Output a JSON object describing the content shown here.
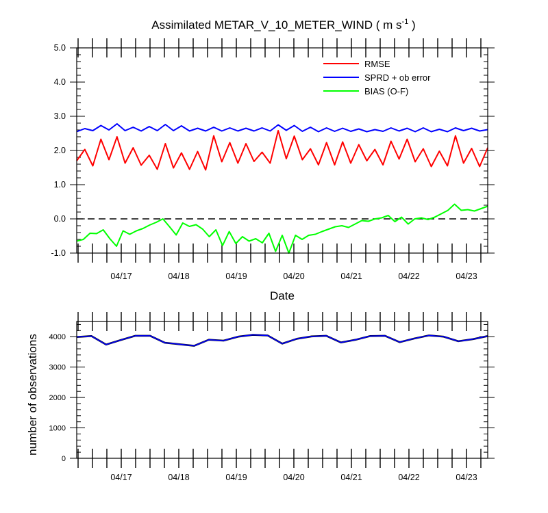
{
  "chart_data": [
    {
      "type": "line",
      "title": "Assimilated METAR_V_10_METER_WIND ( m s",
      "title_superscript": "-1",
      "title_suffix": " )",
      "xlabel": "Date",
      "ylabel": "",
      "ylim": [
        -1.0,
        5.0
      ],
      "yticks": [
        "-1.0",
        "0.0",
        "1.0",
        "2.0",
        "3.0",
        "4.0",
        "5.0"
      ],
      "xticks": [
        "04/17",
        "04/18",
        "04/19",
        "04/20",
        "04/21",
        "04/22",
        "04/23"
      ],
      "zero_line": "dashed",
      "legend": "top-right",
      "series": [
        {
          "name": "RMSE",
          "color": "#ff0000",
          "values": [
            1.7,
            2.03,
            1.55,
            2.33,
            1.73,
            2.4,
            1.63,
            2.08,
            1.57,
            1.86,
            1.45,
            2.2,
            1.49,
            1.93,
            1.45,
            1.97,
            1.43,
            2.43,
            1.67,
            2.23,
            1.63,
            2.2,
            1.68,
            1.95,
            1.63,
            2.58,
            1.76,
            2.42,
            1.73,
            2.05,
            1.58,
            2.23,
            1.58,
            2.25,
            1.63,
            2.17,
            1.7,
            2.03,
            1.58,
            2.27,
            1.75,
            2.33,
            1.67,
            2.05,
            1.53,
            1.98,
            1.55,
            2.43,
            1.63,
            2.06,
            1.53,
            2.08
          ]
        },
        {
          "name": "SPRD + ob error",
          "color": "#0000ff",
          "values": [
            2.55,
            2.64,
            2.58,
            2.73,
            2.6,
            2.78,
            2.58,
            2.68,
            2.57,
            2.7,
            2.58,
            2.76,
            2.58,
            2.72,
            2.57,
            2.65,
            2.57,
            2.68,
            2.57,
            2.66,
            2.57,
            2.65,
            2.57,
            2.66,
            2.57,
            2.75,
            2.59,
            2.73,
            2.56,
            2.68,
            2.55,
            2.66,
            2.56,
            2.65,
            2.56,
            2.63,
            2.55,
            2.61,
            2.56,
            2.66,
            2.57,
            2.65,
            2.55,
            2.66,
            2.55,
            2.62,
            2.55,
            2.66,
            2.58,
            2.65,
            2.57,
            2.61
          ]
        },
        {
          "name": "BIAS (O-F)",
          "color": "#00ff00",
          "values": [
            -0.65,
            -0.6,
            -0.42,
            -0.43,
            -0.32,
            -0.58,
            -0.8,
            -0.35,
            -0.45,
            -0.35,
            -0.28,
            -0.18,
            -0.1,
            0.0,
            -0.23,
            -0.47,
            -0.12,
            -0.22,
            -0.17,
            -0.3,
            -0.52,
            -0.32,
            -0.78,
            -0.37,
            -0.72,
            -0.52,
            -0.65,
            -0.58,
            -0.7,
            -0.42,
            -0.95,
            -0.48,
            -1.0,
            -0.48,
            -0.6,
            -0.48,
            -0.45,
            -0.37,
            -0.3,
            -0.23,
            -0.2,
            -0.25,
            -0.15,
            -0.05,
            -0.07,
            0.0,
            0.03,
            0.1,
            -0.08,
            0.05,
            -0.15,
            0.0,
            0.03,
            -0.02,
            0.05,
            0.15,
            0.25,
            0.43,
            0.25,
            0.27,
            0.23,
            0.3,
            0.37
          ]
        }
      ]
    },
    {
      "type": "line",
      "title": "",
      "xlabel": "",
      "ylabel": "number of observations",
      "ylim": [
        0,
        4500
      ],
      "yticks": [
        "0",
        "1000",
        "2000",
        "3000",
        "4000"
      ],
      "xticks": [
        "04/17",
        "04/18",
        "04/19",
        "04/20",
        "04/21",
        "04/22",
        "04/23"
      ],
      "series": [
        {
          "color": "#000000",
          "values": [
            3990,
            4020,
            3740,
            3890,
            4030,
            4030,
            3800,
            3750,
            3700,
            3900,
            3870,
            4000,
            4060,
            4040,
            3770,
            3930,
            4010,
            4030,
            3810,
            3900,
            4020,
            4030,
            3820,
            3940,
            4040,
            4000,
            3850,
            3920,
            4020
          ]
        },
        {
          "color": "#0000ff",
          "values": [
            3990,
            4020,
            3740,
            3890,
            4030,
            4030,
            3800,
            3750,
            3700,
            3900,
            3870,
            4000,
            4060,
            4040,
            3770,
            3930,
            4010,
            4030,
            3810,
            3900,
            4020,
            4030,
            3820,
            3940,
            4040,
            4000,
            3850,
            3920,
            4020
          ]
        }
      ]
    }
  ]
}
